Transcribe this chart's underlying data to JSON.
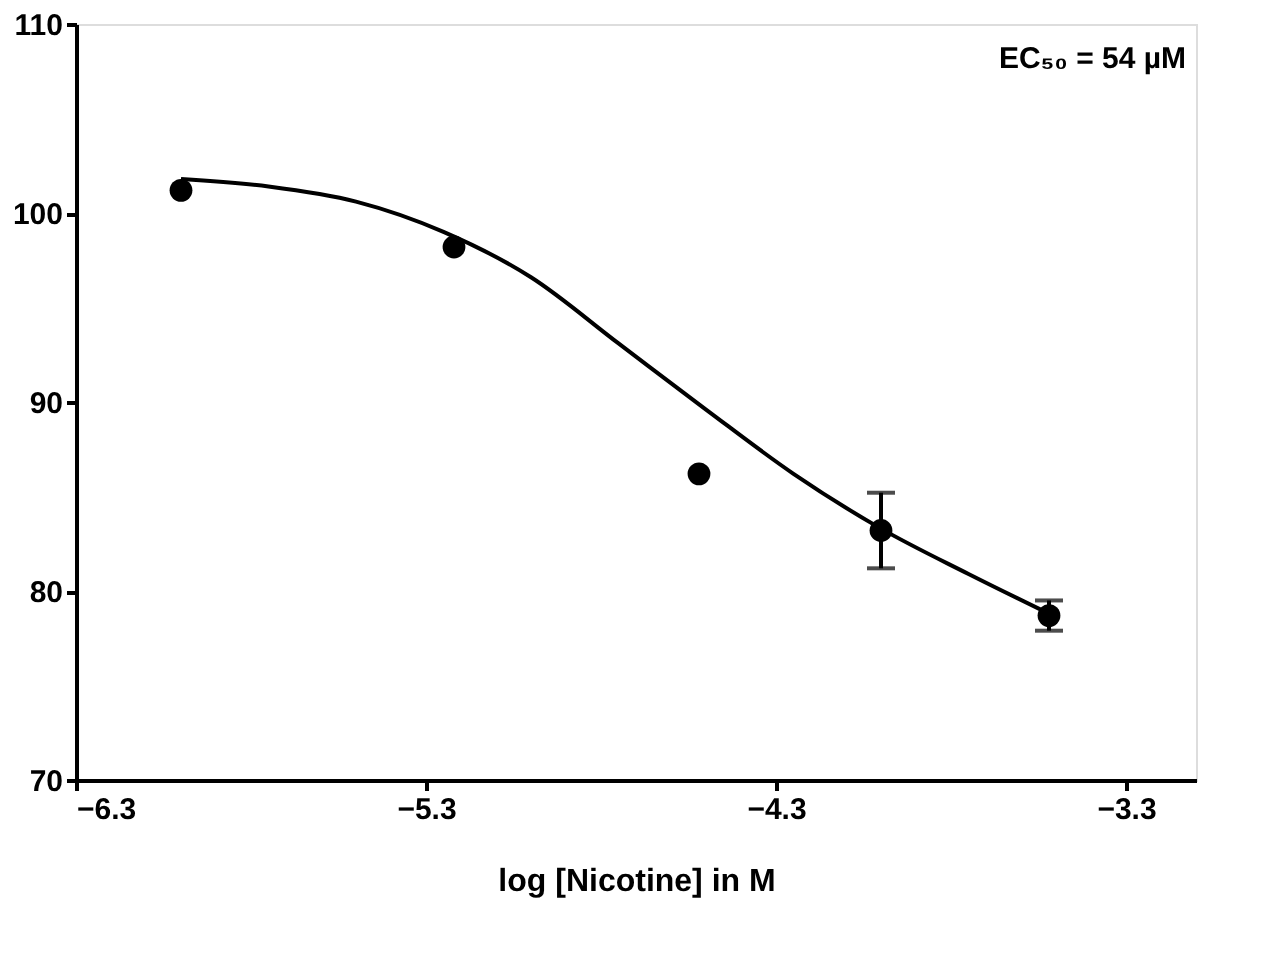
{
  "chart_data": {
    "type": "scatter",
    "xlabel": "log [Nicotine] in M",
    "xlim": [
      -6.3,
      -3.1
    ],
    "xticks": [
      -6.3,
      -5.3,
      -4.3,
      -3.3
    ],
    "ylim": [
      70,
      110
    ],
    "yticks": [
      70,
      80,
      90,
      100,
      110
    ],
    "grid": false,
    "marker": "circle",
    "series": [
      {
        "color": "#000000",
        "x": [
          -6.0,
          -5.22,
          -4.52,
          -4.0,
          -3.52
        ],
        "values": [
          101.2,
          98.2,
          86.2,
          83.2,
          78.7
        ],
        "errors": [
          null,
          null,
          null,
          [
            81.2,
            85.2
          ],
          [
            77.9,
            79.5
          ]
        ]
      },
      {
        "type": "line",
        "color": "#000000",
        "marker": "none",
        "line_style": "solid",
        "x": [
          -6.0,
          -5.75,
          -5.5,
          -5.25,
          -5.0,
          -4.75,
          -4.5,
          -4.25,
          -4.0,
          -3.75,
          -3.52
        ],
        "values": [
          101.8,
          101.4,
          100.6,
          99.0,
          96.6,
          93.1,
          89.6,
          86.2,
          83.3,
          80.9,
          78.8
        ]
      }
    ],
    "annotations": [
      "EC₅₀ = 54 µM"
    ]
  }
}
